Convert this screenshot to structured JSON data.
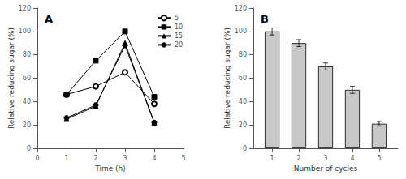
{
  "chart_data": [
    {
      "type": "line",
      "title": "A",
      "xlabel": "Time (h)",
      "ylabel": "Relative reducing sugar (%)",
      "xlim": [
        0,
        5
      ],
      "ylim": [
        0,
        120
      ],
      "xticks": [
        0,
        1,
        2,
        3,
        4,
        5
      ],
      "yticks": [
        0,
        20,
        40,
        60,
        80,
        100,
        120
      ],
      "legend": "upper right",
      "grid": false,
      "series": [
        {
          "name": "5",
          "x": [
            1,
            2,
            3,
            4
          ],
          "values": [
            46,
            53,
            65,
            38
          ],
          "color": "#000000",
          "marker": "circle_open"
        },
        {
          "name": "10",
          "x": [
            1,
            2,
            3,
            4
          ],
          "values": [
            46,
            75,
            100,
            44
          ],
          "color": "#000000",
          "marker": "square"
        },
        {
          "name": "15",
          "x": [
            1,
            2,
            3,
            4
          ],
          "values": [
            25,
            36,
            90,
            22
          ],
          "color": "#000000",
          "marker": "triangle"
        },
        {
          "name": "20",
          "x": [
            1,
            2,
            3,
            4
          ],
          "values": [
            26,
            37,
            88,
            22
          ],
          "color": "#000000",
          "marker": "circle"
        }
      ]
    },
    {
      "type": "bar",
      "title": "B",
      "xlabel": "Number of cycles",
      "ylabel": "Relative reducing sugar (%)",
      "xlim": [
        0.3,
        5.7
      ],
      "ylim": [
        0,
        120
      ],
      "xticks": [
        1,
        2,
        3,
        4,
        5
      ],
      "yticks": [
        0,
        20,
        40,
        60,
        80,
        100,
        120
      ],
      "x": [
        1,
        2,
        3,
        4,
        5
      ],
      "values": [
        100,
        90,
        70,
        50,
        21
      ],
      "errors": [
        3,
        3,
        3,
        3,
        2
      ],
      "color": "#c8c8c8",
      "grid": false
    }
  ]
}
